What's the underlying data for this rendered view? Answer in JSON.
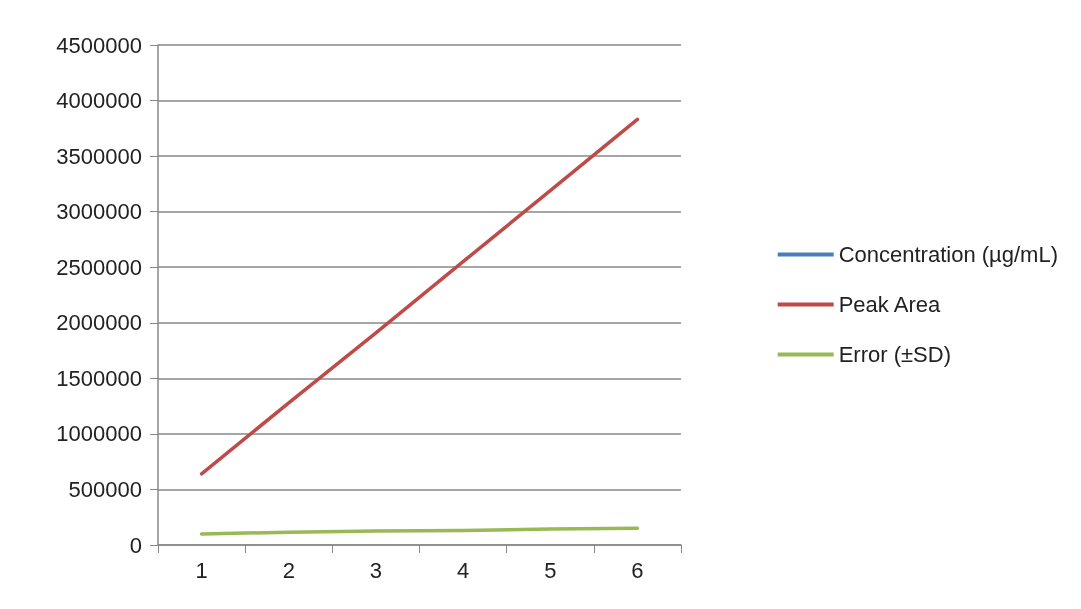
{
  "chart_data": {
    "type": "line",
    "categories": [
      "1",
      "2",
      "3",
      "4",
      "5",
      "6"
    ],
    "series": [
      {
        "name": "Concentration (µg/mL)",
        "color": "#4a7ebb",
        "values": [
          null,
          null,
          null,
          null,
          null,
          null
        ]
      },
      {
        "name": "Peak Area",
        "color": "#be4b48",
        "values": [
          640000,
          1280000,
          1910000,
          2550000,
          3190000,
          3830000
        ]
      },
      {
        "name": "Error (±SD)",
        "color": "#98b954",
        "values": [
          100000,
          115000,
          125000,
          130000,
          145000,
          150000
        ]
      }
    ],
    "ylim": [
      0,
      4500000
    ],
    "yticks": [
      0,
      500000,
      1000000,
      1500000,
      2000000,
      2500000,
      3000000,
      3500000,
      4000000,
      4500000
    ],
    "grid": "y",
    "legend": "right",
    "marker": "none",
    "line_style": "solid"
  }
}
